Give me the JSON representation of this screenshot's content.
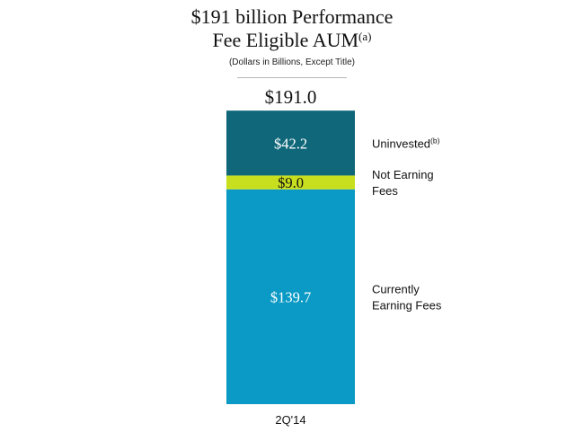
{
  "chart_data": {
    "type": "bar",
    "stacked": true,
    "title": "$191 billion Performance Fee Eligible AUM",
    "title_line1": "$191 billion Performance",
    "title_line2": "Fee Eligible AUM",
    "title_footnote": "(a)",
    "subtitle": "(Dollars in Billions, Except Title)",
    "categories": [
      "2Q'14"
    ],
    "total_label": "$191.0",
    "total": 191.0,
    "series": [
      {
        "name": "Currently Earning Fees",
        "legend_lines": [
          "Currently",
          "Earning Fees"
        ],
        "legend_footnote": "",
        "values": [
          139.7
        ],
        "label": "$139.7",
        "color": "#0a9ac5",
        "label_color": "#ffffff"
      },
      {
        "name": "Not Earning Fees",
        "legend_lines": [
          "Not Earning",
          "Fees"
        ],
        "legend_footnote": "",
        "values": [
          9.0
        ],
        "label": "$9.0",
        "color": "#c7df1f",
        "label_color": "#111111"
      },
      {
        "name": "Uninvested",
        "legend_lines": [
          "Uninvested"
        ],
        "legend_footnote": "(b)",
        "values": [
          42.2
        ],
        "label": "$42.2",
        "color": "#0f6779",
        "label_color": "#ffffff"
      }
    ],
    "ylim": [
      0,
      191.0
    ]
  }
}
